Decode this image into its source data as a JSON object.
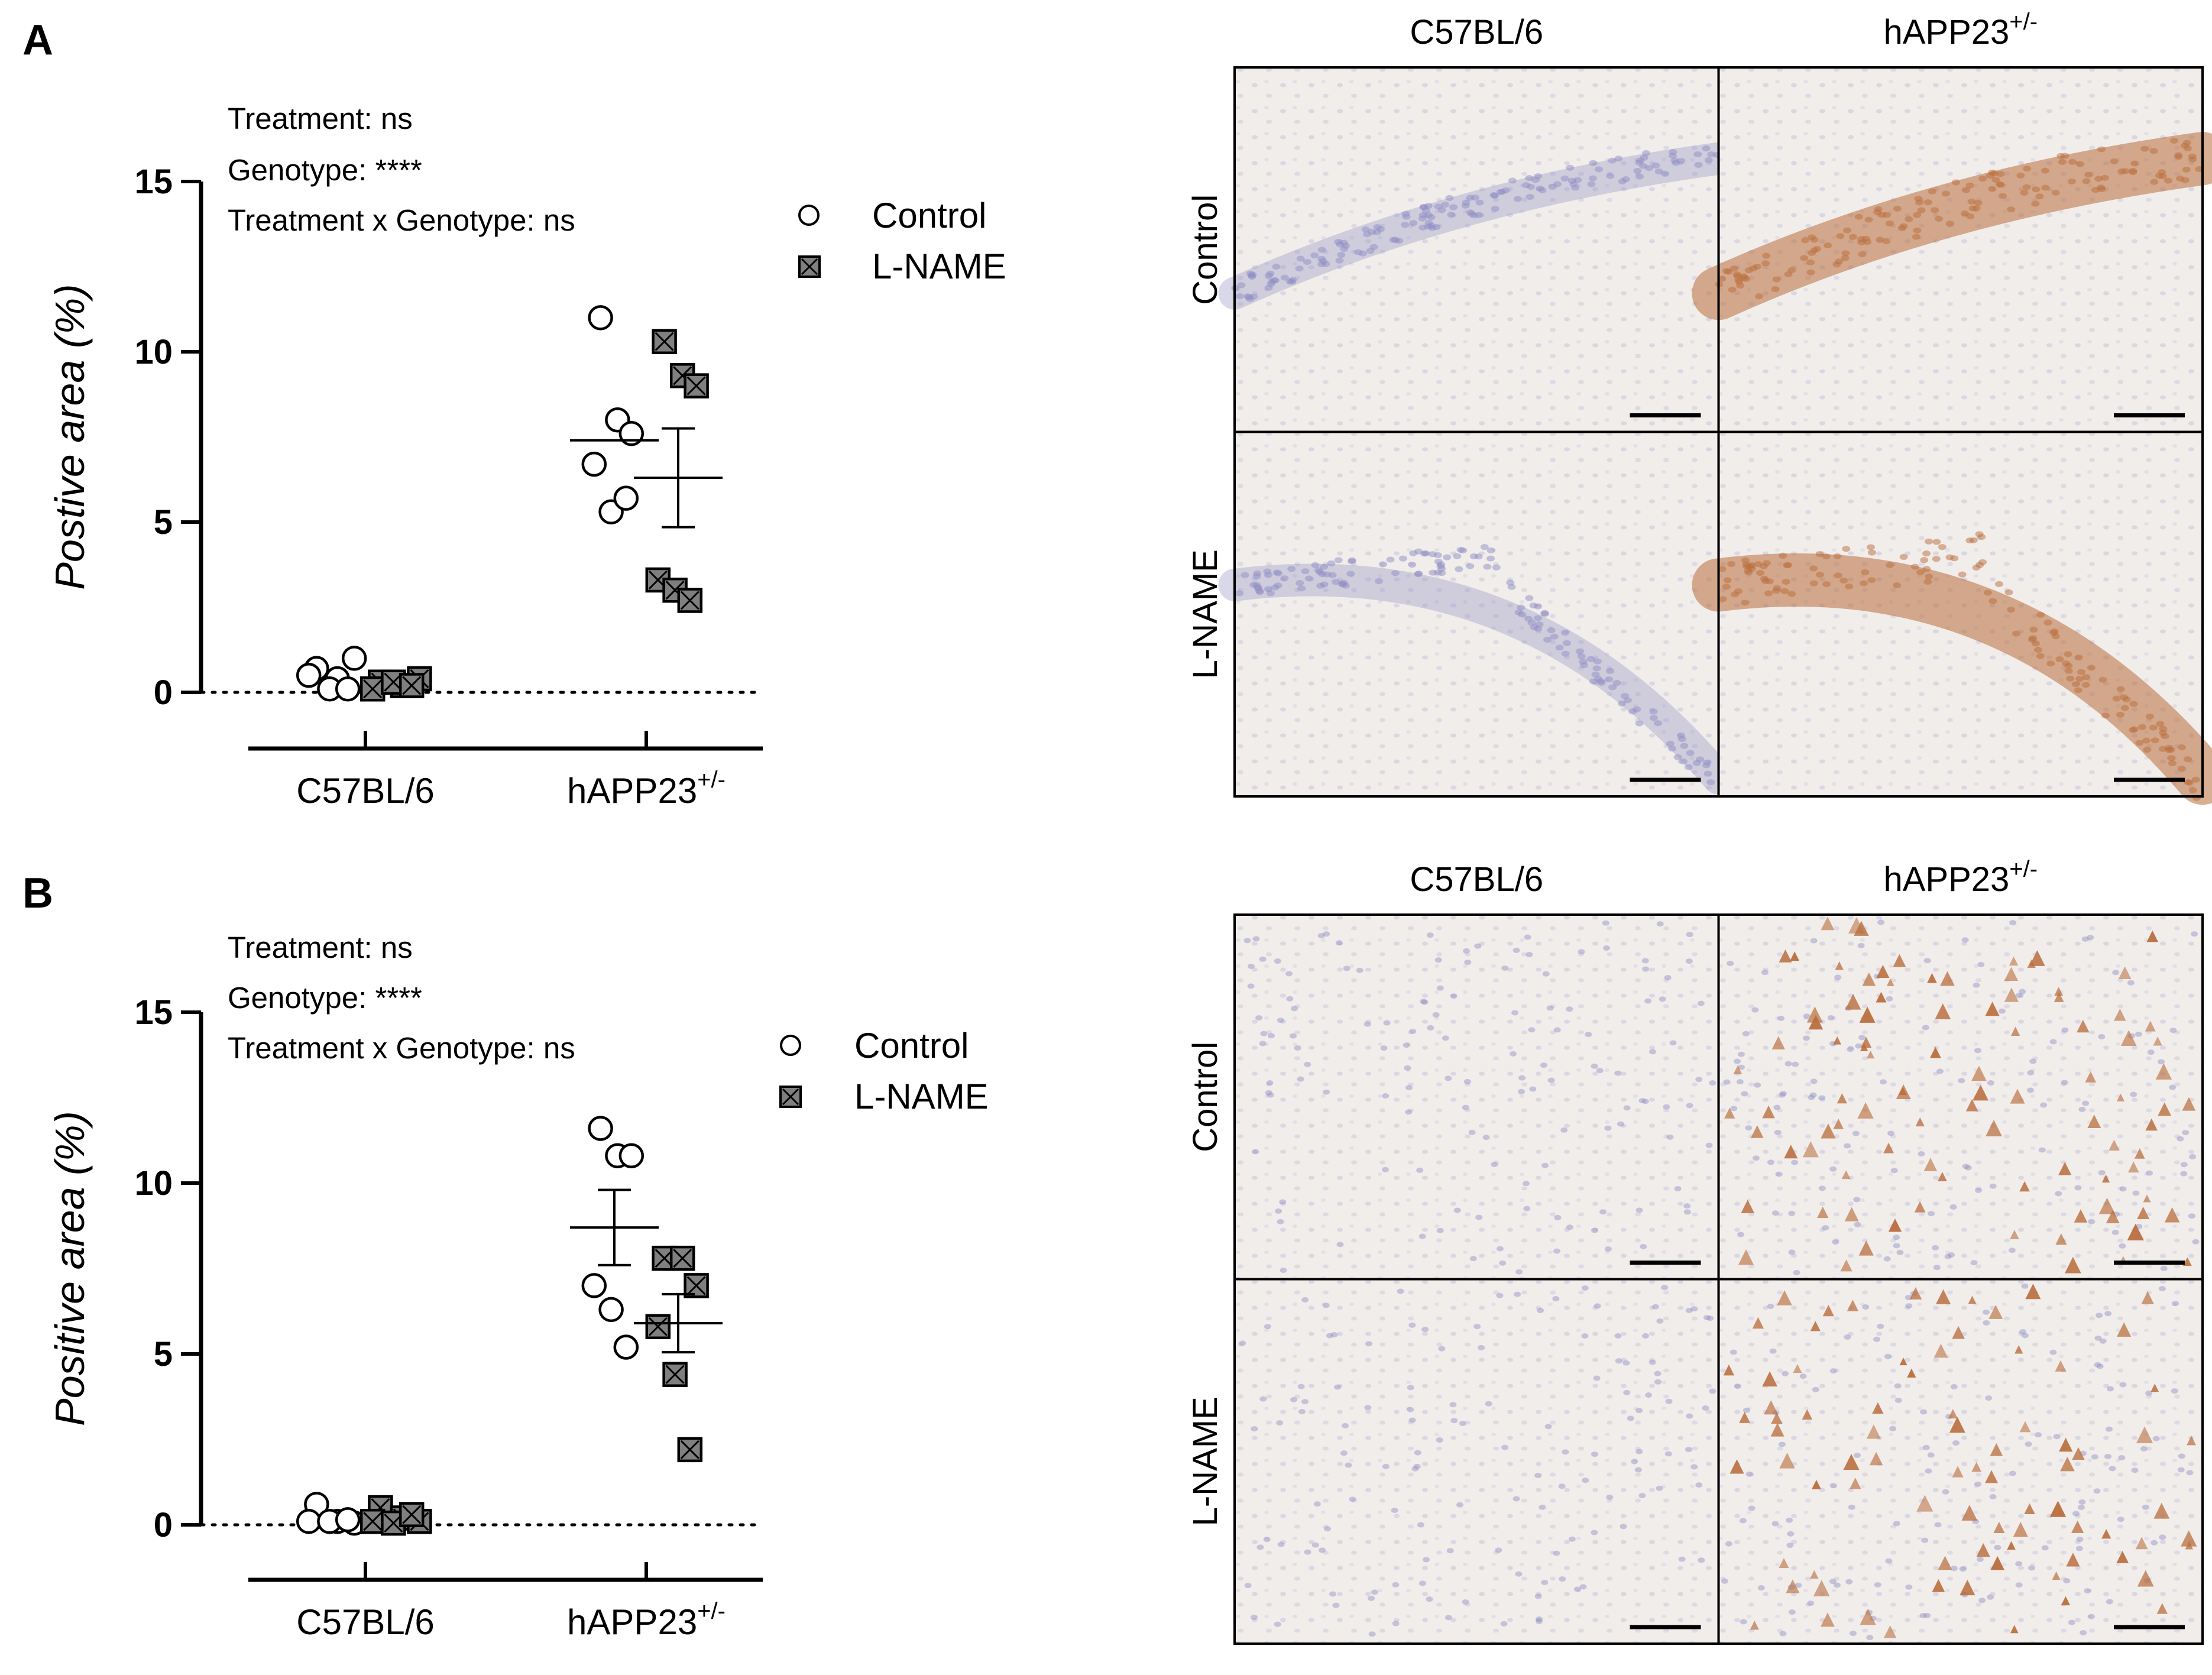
{
  "colors": {
    "axis": "#000000",
    "open_marker_fill": "#ffffff",
    "lname_marker_fill": "#7f7f7f",
    "tissue_background": "#f1edea",
    "nuclei": "#8f8ec4",
    "dab_stain": "#b96d3c",
    "scale_bar": "#000000"
  },
  "panels": [
    {
      "letter": "A",
      "stats": [
        "Treatment: ns",
        "Genotype: ****",
        "Treatment x Genotype: ns"
      ],
      "legend": [
        {
          "label": "Control",
          "marker": "open-circle"
        },
        {
          "label": "L-NAME",
          "marker": "x-square"
        }
      ],
      "micrographs": {
        "columns": [
          {
            "main": "C57BL/6",
            "sup": ""
          },
          {
            "main": "hAPP23",
            "sup": "+/-"
          }
        ],
        "rows": [
          "Control",
          "L-NAME"
        ],
        "pattern": "hippocampal cell band",
        "stain": [
          [
            "none",
            "diffuse"
          ],
          [
            "none",
            "granular"
          ]
        ]
      }
    },
    {
      "letter": "B",
      "stats": [
        "Treatment: ns",
        "Genotype: ****",
        "Treatment x Genotype: ns"
      ],
      "legend": [
        {
          "label": "Control",
          "marker": "open-circle"
        },
        {
          "label": "L-NAME",
          "marker": "x-square"
        }
      ],
      "micrographs": {
        "columns": [
          {
            "main": "C57BL/6",
            "sup": ""
          },
          {
            "main": "hAPP23",
            "sup": "+/-"
          }
        ],
        "rows": [
          "Control",
          "L-NAME"
        ],
        "pattern": "scattered cells",
        "stain": [
          [
            "none",
            "cellular"
          ],
          [
            "none",
            "cellular"
          ]
        ]
      }
    }
  ],
  "chart_data": [
    {
      "type": "scatter",
      "title": "",
      "ylabel": "Postive area (%)",
      "xlabel": "",
      "ylim": [
        0,
        15
      ],
      "yticks": [
        0,
        5,
        10,
        15
      ],
      "categories": [
        {
          "main": "C57BL/6",
          "sup": ""
        },
        {
          "main": "hAPP23",
          "sup": "+/-"
        }
      ],
      "reference_line": 0,
      "series": [
        {
          "name": "Control",
          "marker": "open-circle",
          "groups": [
            {
              "category": "C57BL/6",
              "points": [
                0.7,
                0.4,
                1.0,
                0.5,
                0.1,
                0.1
              ],
              "mean": null,
              "sem": null
            },
            {
              "category": "hAPP23+/-",
              "points": [
                11.0,
                8.0,
                7.6,
                6.7,
                5.3,
                5.7
              ],
              "mean": 7.4,
              "sem": null
            }
          ]
        },
        {
          "name": "L-NAME",
          "marker": "x-square",
          "groups": [
            {
              "category": "C57BL/6",
              "points": [
                0.3,
                0.2,
                0.4,
                0.1,
                0.3,
                0.2
              ],
              "mean": null,
              "sem": null
            },
            {
              "category": "hAPP23+/-",
              "points": [
                10.3,
                9.3,
                9.0,
                3.3,
                3.0,
                2.7
              ],
              "mean": 6.3,
              "sem": 1.45
            }
          ]
        }
      ]
    },
    {
      "type": "scatter",
      "title": "",
      "ylabel": "Positive area (%)",
      "xlabel": "",
      "ylim": [
        0,
        15
      ],
      "yticks": [
        0,
        5,
        10,
        15
      ],
      "categories": [
        {
          "main": "C57BL/6",
          "sup": ""
        },
        {
          "main": "hAPP23",
          "sup": "+/-"
        }
      ],
      "reference_line": 0,
      "series": [
        {
          "name": "Control",
          "marker": "open-circle",
          "groups": [
            {
              "category": "C57BL/6",
              "points": [
                0.6,
                0.1,
                0.05,
                0.1,
                0.1,
                0.15
              ],
              "mean": null,
              "sem": null
            },
            {
              "category": "hAPP23+/-",
              "points": [
                11.6,
                10.8,
                10.8,
                7.0,
                6.3,
                5.2
              ],
              "mean": 8.7,
              "sem": 1.1
            }
          ]
        },
        {
          "name": "L-NAME",
          "marker": "x-square",
          "groups": [
            {
              "category": "C57BL/6",
              "points": [
                0.5,
                0.2,
                0.1,
                0.1,
                0.05,
                0.3
              ],
              "mean": null,
              "sem": null
            },
            {
              "category": "hAPP23+/-",
              "points": [
                7.8,
                7.8,
                7.0,
                5.8,
                4.4,
                2.2
              ],
              "mean": 5.9,
              "sem": 0.85
            }
          ]
        }
      ]
    }
  ]
}
